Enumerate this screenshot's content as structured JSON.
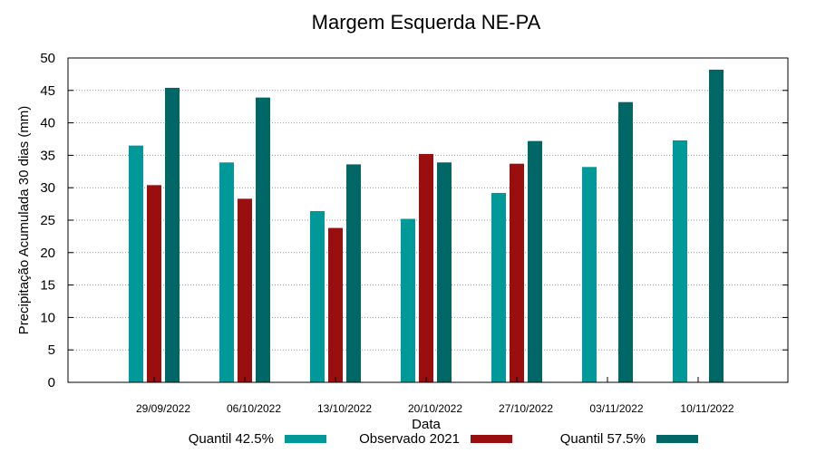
{
  "chart_data": {
    "type": "bar",
    "title": "Margem Esquerda NE-PA",
    "xlabel": "Data",
    "ylabel": "Precipitação Acumulada 30 dias (mm)",
    "ylim": [
      0,
      50
    ],
    "yticks": [
      "0",
      "5",
      "10",
      "15",
      "20",
      "25",
      "30",
      "35",
      "40",
      "45",
      "50"
    ],
    "grid": true,
    "legend_position": "bottom",
    "categories": [
      "29/09/2022",
      "06/10/2022",
      "13/10/2022",
      "20/10/2022",
      "27/10/2022",
      "03/11/2022",
      "10/11/2022"
    ],
    "series": [
      {
        "name": "Quantil 42.5%",
        "color": "#009999",
        "values": [
          36.5,
          33.9,
          26.4,
          25.2,
          29.2,
          33.2,
          37.3
        ]
      },
      {
        "name": "Observado 2021",
        "color": "#990f0f",
        "values": [
          30.4,
          28.3,
          23.8,
          35.2,
          33.7,
          null,
          null
        ]
      },
      {
        "name": "Quantil 57.5%",
        "color": "#006666",
        "values": [
          45.4,
          43.9,
          33.6,
          33.9,
          37.2,
          43.2,
          48.2
        ]
      }
    ]
  }
}
